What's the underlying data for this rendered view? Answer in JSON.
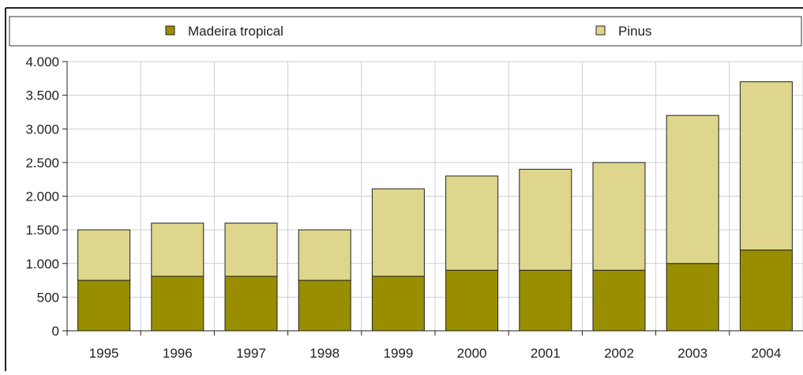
{
  "chart_data": {
    "type": "bar",
    "stacked": true,
    "title": "",
    "xlabel": "",
    "ylabel": "",
    "categories": [
      "1995",
      "1996",
      "1997",
      "1998",
      "1999",
      "2000",
      "2001",
      "2002",
      "2003",
      "2004"
    ],
    "series": [
      {
        "name": "Madeira tropical",
        "color": "#998e00",
        "values": [
          750,
          810,
          810,
          750,
          810,
          900,
          900,
          900,
          1000,
          1200
        ]
      },
      {
        "name": "Pinus",
        "color": "#ded68c",
        "values": [
          750,
          790,
          790,
          750,
          1300,
          1400,
          1500,
          1600,
          2200,
          2500
        ]
      }
    ],
    "ylim": [
      0,
      4000
    ],
    "yticks": [
      0,
      500,
      1000,
      1500,
      2000,
      2500,
      3000,
      3500,
      4000
    ],
    "ytick_labels": [
      "0",
      "500",
      "1.000",
      "1.500",
      "2.000",
      "2.500",
      "3.000",
      "3.500",
      "4.000"
    ],
    "grid": true,
    "legend_position": "top"
  }
}
